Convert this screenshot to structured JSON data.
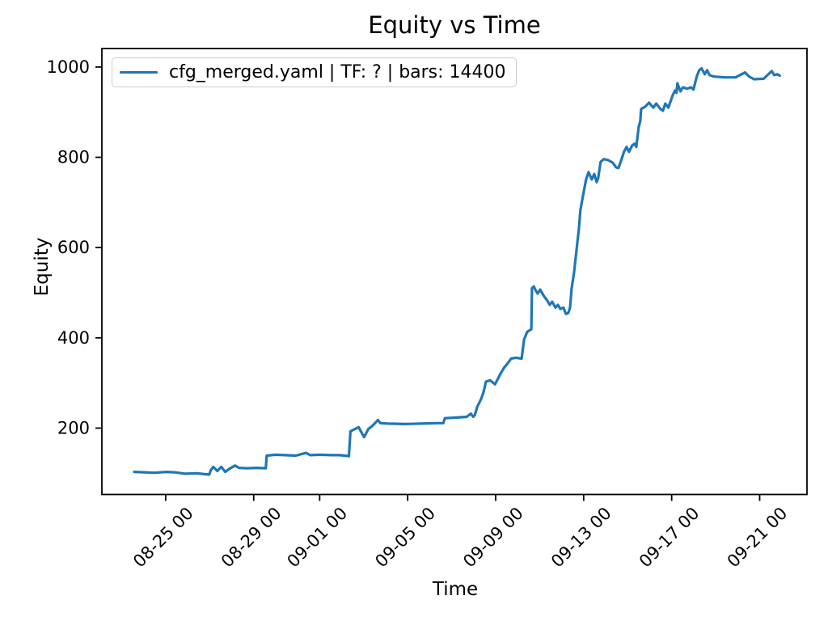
{
  "figure": {
    "title": "Equity vs Time",
    "xlabel": "Time",
    "ylabel": "Equity",
    "legend": {
      "label": "cfg_merged.yaml | TF: ? | bars: 14400"
    }
  },
  "chart_data": {
    "type": "line",
    "title": "Equity vs Time",
    "xlabel": "Time",
    "ylabel": "Equity",
    "grid": false,
    "legend_position": "upper-left",
    "legend_entries": [
      "cfg_merged.yaml | TF: ? | bars: 14400"
    ],
    "x_axis": {
      "unit": "days since 08-23 00:00",
      "lim": [
        -0.9,
        31.15
      ],
      "ticks": [
        {
          "t": 2,
          "label": "08-25 00"
        },
        {
          "t": 6,
          "label": "08-29 00"
        },
        {
          "t": 9,
          "label": "09-01 00"
        },
        {
          "t": 13,
          "label": "09-05 00"
        },
        {
          "t": 17,
          "label": "09-09 00"
        },
        {
          "t": 21,
          "label": "09-13 00"
        },
        {
          "t": 25,
          "label": "09-17 00"
        },
        {
          "t": 29,
          "label": "09-21 00"
        }
      ]
    },
    "y_axis": {
      "lim": [
        53,
        1041
      ],
      "ticks": [
        200,
        400,
        600,
        800,
        1000
      ]
    },
    "series": [
      {
        "name": "cfg_merged.yaml | TF: ? | bars: 14400",
        "color": "#1f77b4",
        "points": [
          [
            0.57,
            103
          ],
          [
            1.05,
            102
          ],
          [
            1.49,
            101
          ],
          [
            2.04,
            103
          ],
          [
            2.4,
            102
          ],
          [
            2.88,
            99
          ],
          [
            3.43,
            100
          ],
          [
            3.76,
            98
          ],
          [
            3.98,
            97
          ],
          [
            4.05,
            107
          ],
          [
            4.16,
            114
          ],
          [
            4.35,
            105
          ],
          [
            4.53,
            114
          ],
          [
            4.71,
            103
          ],
          [
            4.9,
            110
          ],
          [
            5.15,
            117
          ],
          [
            5.34,
            112
          ],
          [
            5.7,
            111
          ],
          [
            6.14,
            112
          ],
          [
            6.55,
            111
          ],
          [
            6.59,
            139
          ],
          [
            6.99,
            141
          ],
          [
            7.43,
            140
          ],
          [
            7.91,
            139
          ],
          [
            8.38,
            145
          ],
          [
            8.57,
            140
          ],
          [
            9.01,
            141
          ],
          [
            9.56,
            140
          ],
          [
            9.92,
            140
          ],
          [
            10.33,
            138
          ],
          [
            10.4,
            193
          ],
          [
            10.77,
            202
          ],
          [
            11.02,
            180
          ],
          [
            11.21,
            198
          ],
          [
            11.39,
            205
          ],
          [
            11.65,
            218
          ],
          [
            11.76,
            211
          ],
          [
            12.12,
            210
          ],
          [
            12.86,
            209
          ],
          [
            13.59,
            210
          ],
          [
            14.32,
            211
          ],
          [
            14.62,
            211
          ],
          [
            14.69,
            222
          ],
          [
            15.06,
            223
          ],
          [
            15.43,
            224
          ],
          [
            15.68,
            225
          ],
          [
            15.87,
            232
          ],
          [
            15.98,
            225
          ],
          [
            16.05,
            229
          ],
          [
            16.16,
            247
          ],
          [
            16.34,
            265
          ],
          [
            16.45,
            280
          ],
          [
            16.56,
            303
          ],
          [
            16.75,
            306
          ],
          [
            16.97,
            297
          ],
          [
            17.19,
            318
          ],
          [
            17.37,
            333
          ],
          [
            17.52,
            342
          ],
          [
            17.7,
            354
          ],
          [
            17.92,
            356
          ],
          [
            18.18,
            354
          ],
          [
            18.29,
            396
          ],
          [
            18.43,
            413
          ],
          [
            18.62,
            419
          ],
          [
            18.65,
            510
          ],
          [
            18.73,
            514
          ],
          [
            18.84,
            503
          ],
          [
            18.91,
            498
          ],
          [
            19.02,
            507
          ],
          [
            19.17,
            494
          ],
          [
            19.35,
            482
          ],
          [
            19.46,
            473
          ],
          [
            19.57,
            480
          ],
          [
            19.72,
            467
          ],
          [
            19.83,
            473
          ],
          [
            19.94,
            464
          ],
          [
            20.08,
            467
          ],
          [
            20.19,
            453
          ],
          [
            20.3,
            455
          ],
          [
            20.38,
            467
          ],
          [
            20.45,
            509
          ],
          [
            20.56,
            544
          ],
          [
            20.67,
            593
          ],
          [
            20.78,
            641
          ],
          [
            20.85,
            683
          ],
          [
            20.96,
            713
          ],
          [
            21.04,
            733
          ],
          [
            21.11,
            751
          ],
          [
            21.22,
            767
          ],
          [
            21.37,
            751
          ],
          [
            21.48,
            763
          ],
          [
            21.59,
            745
          ],
          [
            21.66,
            754
          ],
          [
            21.77,
            790
          ],
          [
            21.92,
            796
          ],
          [
            22.1,
            794
          ],
          [
            22.32,
            788
          ],
          [
            22.47,
            778
          ],
          [
            22.58,
            776
          ],
          [
            22.65,
            785
          ],
          [
            22.84,
            813
          ],
          [
            22.95,
            823
          ],
          [
            23.06,
            812
          ],
          [
            23.2,
            826
          ],
          [
            23.31,
            830
          ],
          [
            23.39,
            823
          ],
          [
            23.5,
            867
          ],
          [
            23.57,
            880
          ],
          [
            23.61,
            907
          ],
          [
            23.79,
            912
          ],
          [
            23.97,
            921
          ],
          [
            24.16,
            910
          ],
          [
            24.3,
            919
          ],
          [
            24.49,
            907
          ],
          [
            24.6,
            903
          ],
          [
            24.71,
            919
          ],
          [
            24.85,
            910
          ],
          [
            25.04,
            937
          ],
          [
            25.15,
            948
          ],
          [
            25.22,
            943
          ],
          [
            25.26,
            964
          ],
          [
            25.4,
            946
          ],
          [
            25.51,
            955
          ],
          [
            25.7,
            952
          ],
          [
            25.88,
            955
          ],
          [
            25.99,
            950
          ],
          [
            26.14,
            979
          ],
          [
            26.25,
            993
          ],
          [
            26.36,
            997
          ],
          [
            26.5,
            984
          ],
          [
            26.61,
            993
          ],
          [
            26.72,
            982
          ],
          [
            26.91,
            979
          ],
          [
            27.42,
            977
          ],
          [
            27.9,
            977
          ],
          [
            28.34,
            988
          ],
          [
            28.52,
            979
          ],
          [
            28.74,
            973
          ],
          [
            29.18,
            974
          ],
          [
            29.48,
            988
          ],
          [
            29.55,
            991
          ],
          [
            29.66,
            982
          ],
          [
            29.8,
            984
          ],
          [
            29.91,
            981
          ]
        ]
      }
    ]
  }
}
